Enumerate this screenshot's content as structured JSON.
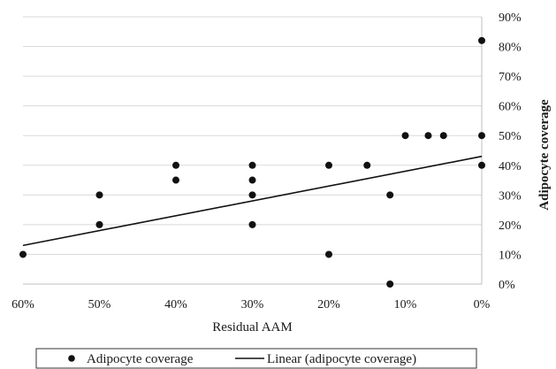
{
  "chart_data": {
    "type": "scatter",
    "xlabel": "Residual AAM",
    "ylabel": "Adipocyte coverage",
    "x_ticks": [
      "60%",
      "50%",
      "40%",
      "30%",
      "20%",
      "10%",
      "0%"
    ],
    "y_ticks": [
      "0%",
      "10%",
      "20%",
      "30%",
      "40%",
      "50%",
      "60%",
      "70%",
      "80%",
      "90%"
    ],
    "xlim": [
      60,
      0
    ],
    "ylim": [
      0,
      90
    ],
    "x_reversed": true,
    "grid": "horizontal",
    "y_axis_side": "right",
    "legend_position": "bottom",
    "series": [
      {
        "name": "Adipocyte coverage",
        "kind": "scatter",
        "points": [
          [
            60,
            10
          ],
          [
            50,
            30
          ],
          [
            50,
            20
          ],
          [
            40,
            40
          ],
          [
            40,
            35
          ],
          [
            30,
            40
          ],
          [
            30,
            35
          ],
          [
            30,
            30
          ],
          [
            30,
            20
          ],
          [
            20,
            40
          ],
          [
            20,
            10
          ],
          [
            15,
            40
          ],
          [
            12,
            30
          ],
          [
            12,
            0
          ],
          [
            10,
            50
          ],
          [
            7,
            50
          ],
          [
            5,
            50
          ],
          [
            0,
            82
          ],
          [
            0,
            50
          ],
          [
            0,
            40
          ]
        ]
      },
      {
        "name": "Linear (adipocyte coverage)",
        "kind": "trendline",
        "points": [
          [
            60,
            13
          ],
          [
            0,
            43
          ]
        ]
      }
    ],
    "colors": {
      "marker": "#111111",
      "line": "#111111",
      "grid": "#d9d9d9"
    }
  }
}
